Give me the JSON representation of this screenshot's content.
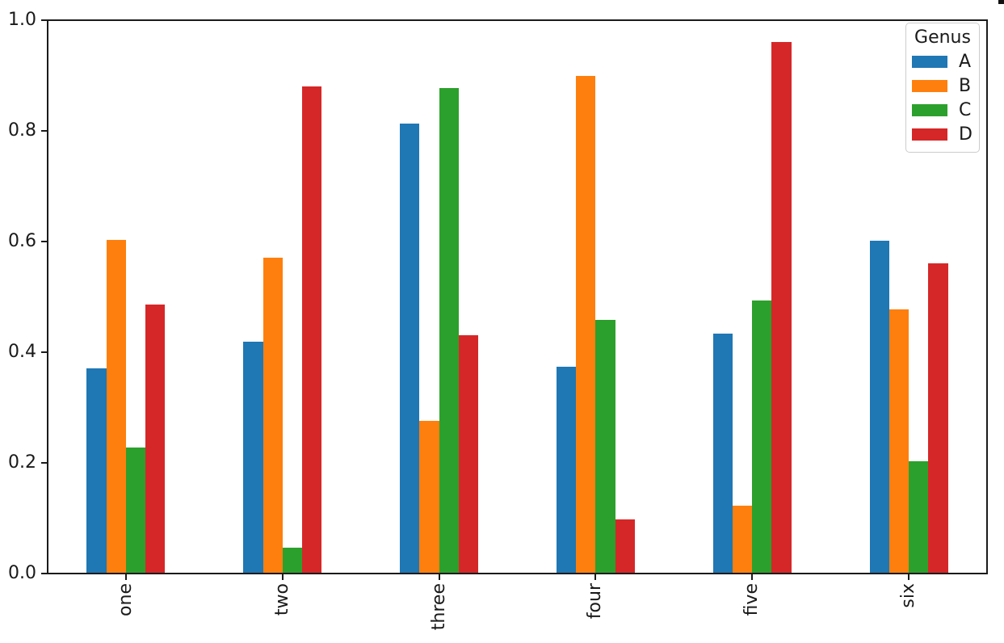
{
  "chart_data": {
    "type": "bar",
    "title": "",
    "categories": [
      "one",
      "two",
      "three",
      "four",
      "five",
      "six"
    ],
    "series": [
      {
        "name": "A",
        "color": "#1f77b4",
        "values": [
          0.371,
          0.419,
          0.813,
          0.373,
          0.433,
          0.601
        ]
      },
      {
        "name": "B",
        "color": "#ff7f0e",
        "values": [
          0.603,
          0.571,
          0.276,
          0.899,
          0.123,
          0.478
        ]
      },
      {
        "name": "C",
        "color": "#2ca02c",
        "values": [
          0.228,
          0.047,
          0.877,
          0.458,
          0.494,
          0.203
        ]
      },
      {
        "name": "D",
        "color": "#d62728",
        "values": [
          0.486,
          0.881,
          0.431,
          0.098,
          0.96,
          0.561
        ]
      }
    ],
    "xlabel": "",
    "ylabel": "",
    "ylim": [
      0.0,
      1.0
    ],
    "yticks": [
      0.0,
      0.2,
      0.4,
      0.6,
      0.8,
      1.0
    ],
    "ytick_labels": [
      "0.0",
      "0.2",
      "0.4",
      "0.6",
      "0.8",
      "1.0"
    ],
    "xtick_rotation": 90,
    "grid": false,
    "bar_group_width_fraction": 0.5,
    "legend": {
      "title": "Genus",
      "position": "upper right",
      "entries": [
        "A",
        "B",
        "C",
        "D"
      ]
    },
    "axis_color": "#1b1b1b",
    "background_color": "#ffffff"
  }
}
